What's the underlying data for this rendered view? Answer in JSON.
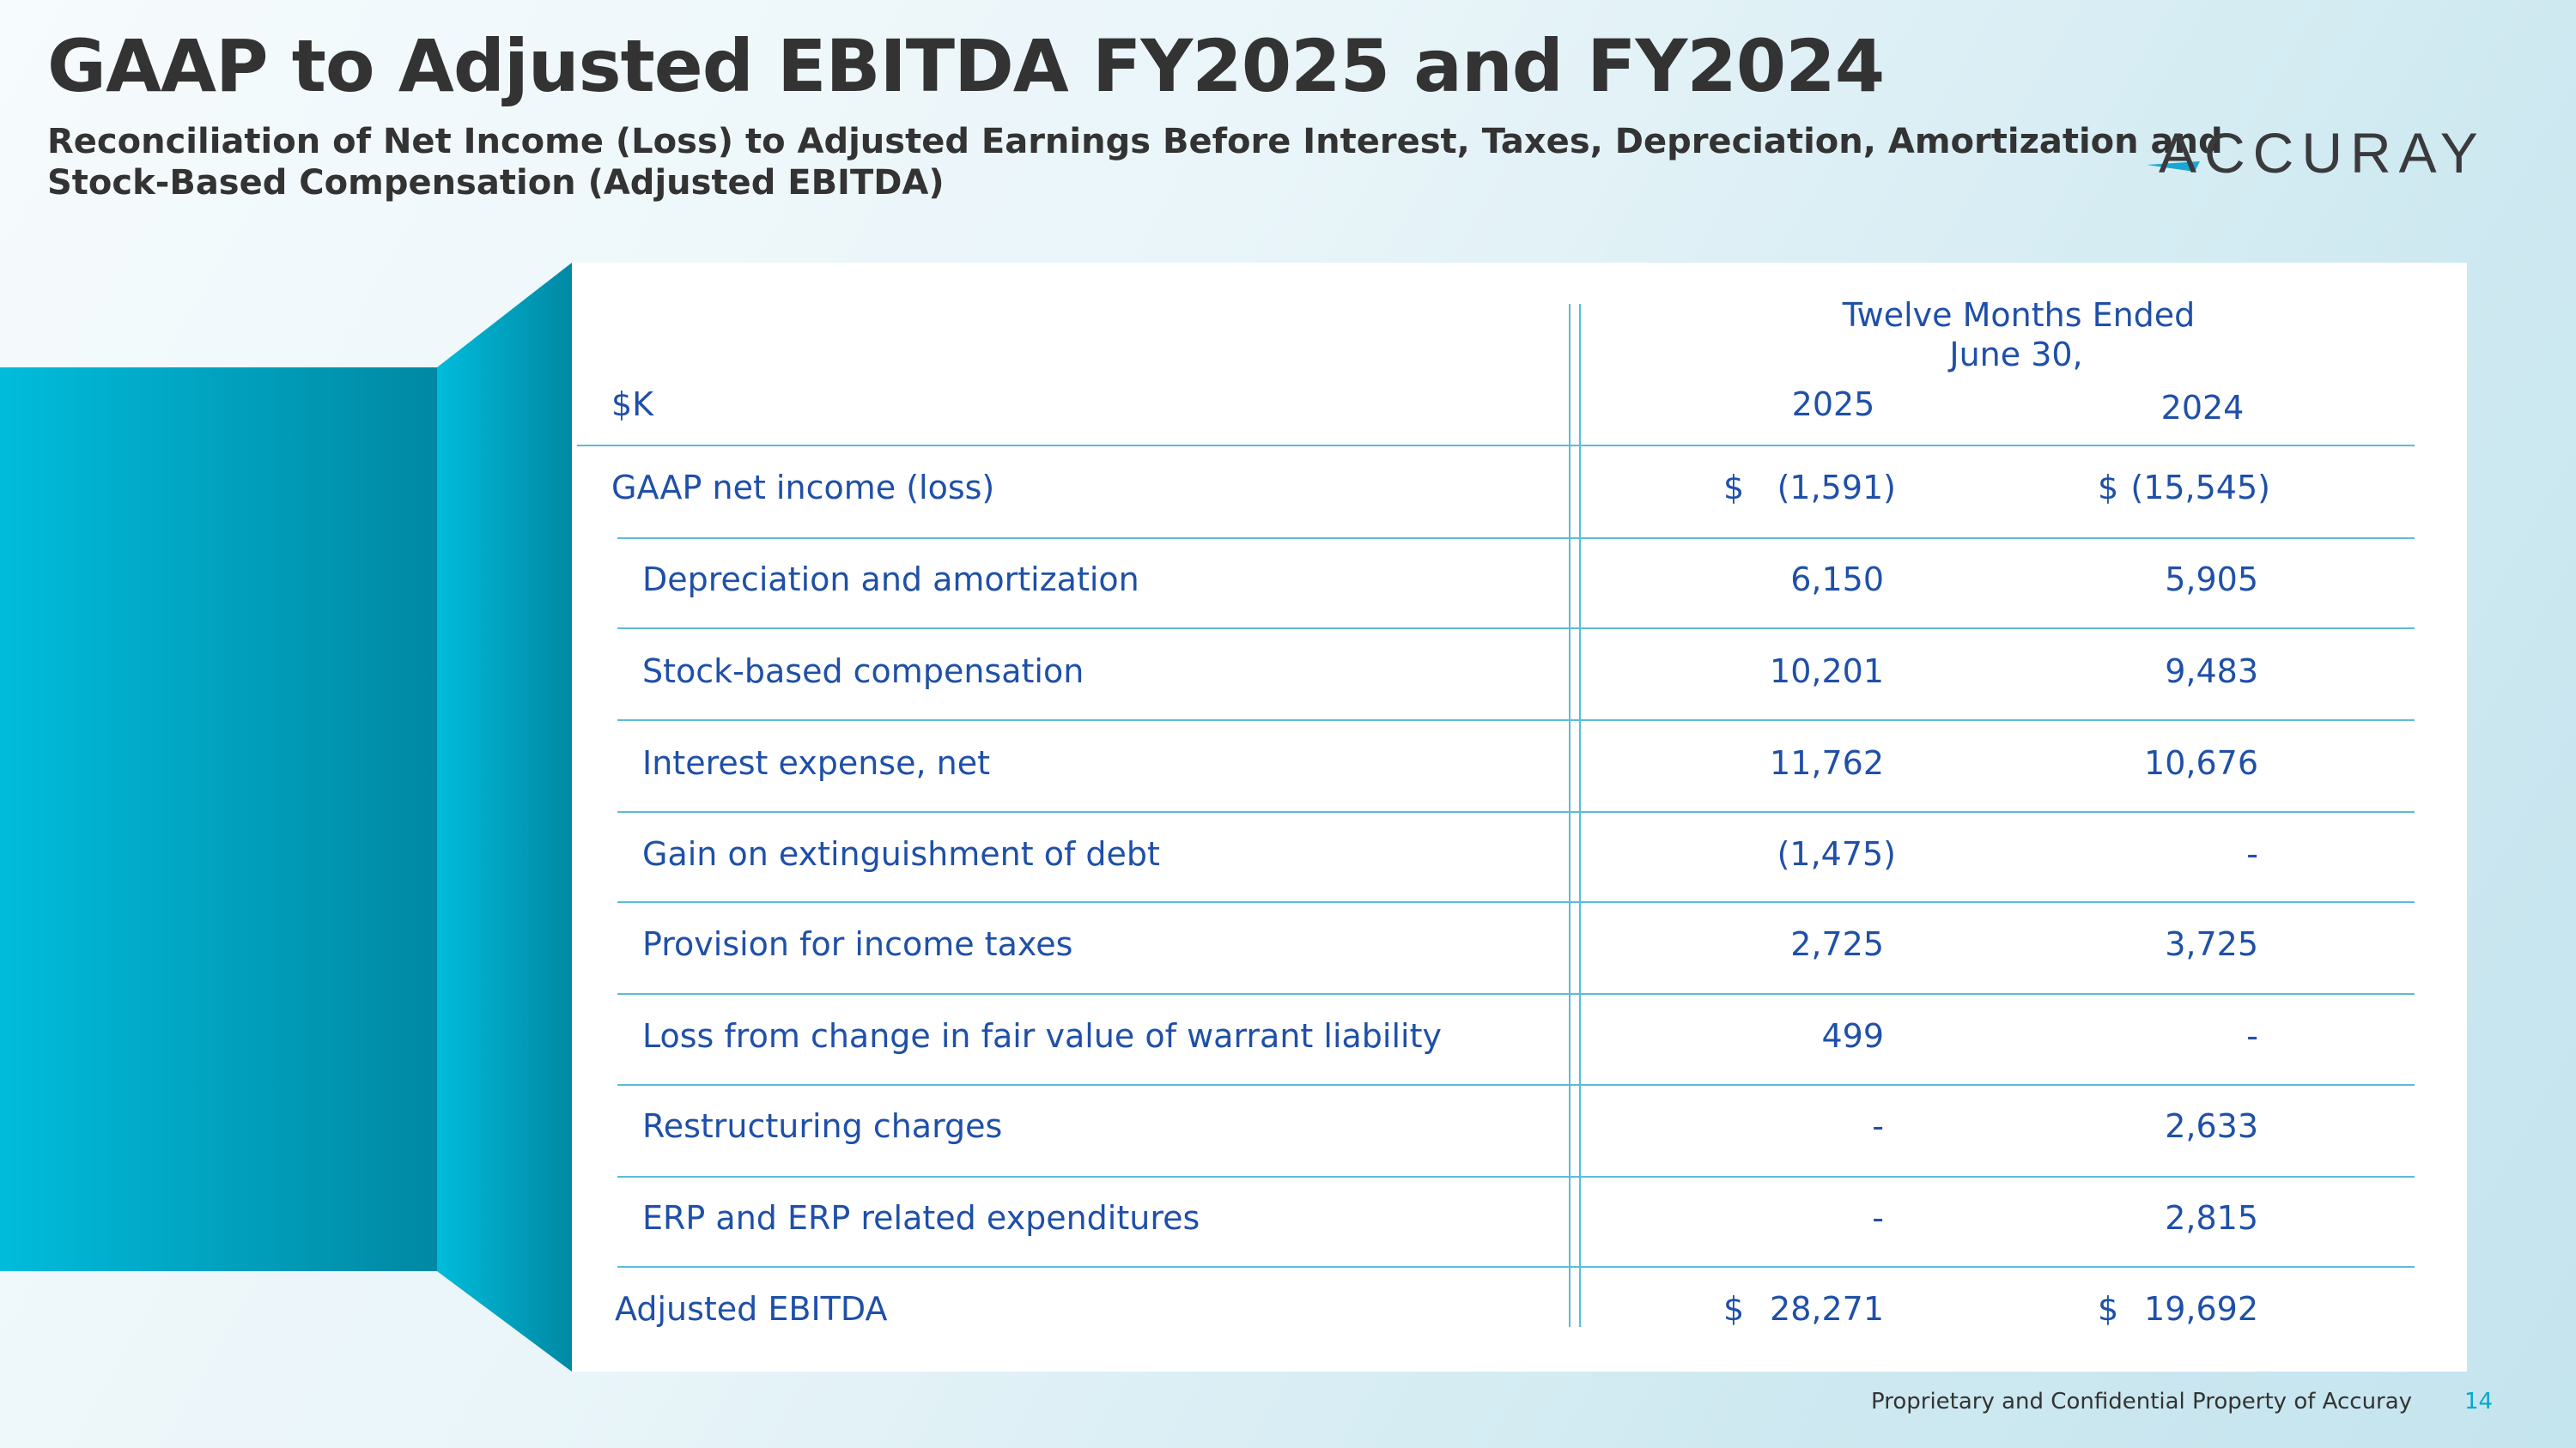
{
  "header": {
    "title": "GAAP to Adjusted EBITDA FY2025 and FY2024",
    "subtitle_line1": "Reconciliation of Net Income (Loss) to Adjusted Earnings Before Interest, Taxes, Depreciation, Amortization and",
    "subtitle_line2": "Stock-Based Compensation (Adjusted EBITDA)",
    "logo_text": "ACCURAY"
  },
  "table": {
    "unit_label": "$K",
    "period_header_line1": "Twelve Months Ended",
    "period_header_line2": "June 30,",
    "columns": [
      "2025",
      "2024"
    ],
    "rows": [
      {
        "label": "GAAP net income (loss)",
        "c2025_sign": "$",
        "c2025": "(1,591)",
        "c2024_sign": "$",
        "c2024": "(15,545)"
      },
      {
        "label": "Depreciation and amortization",
        "c2025": "6,150",
        "c2024": "5,905"
      },
      {
        "label": "Stock-based compensation",
        "c2025": "10,201",
        "c2024": "9,483"
      },
      {
        "label": "Interest expense, net",
        "c2025": "11,762",
        "c2024": "10,676"
      },
      {
        "label": "Gain on extinguishment of debt",
        "c2025": "(1,475)",
        "c2024": "-"
      },
      {
        "label": "Provision for income taxes",
        "c2025": "2,725",
        "c2024": "3,725"
      },
      {
        "label": "Loss from change in fair value of warrant liability",
        "c2025": "499",
        "c2024": "-"
      },
      {
        "label": "Restructuring charges",
        "c2025": "-",
        "c2024": "2,633"
      },
      {
        "label": "ERP and ERP related expenditures",
        "c2025": "-",
        "c2024": "2,815"
      },
      {
        "label": "Adjusted EBITDA",
        "c2025_sign": "$",
        "c2025": "28,271",
        "c2024_sign": "$",
        "c2024": "19,692"
      }
    ]
  },
  "footer": {
    "confidential": "Proprietary and Confidential Property of Accuray",
    "page_number": "14"
  },
  "colors": {
    "title": "#333333",
    "table_text": "#1f50a8",
    "rule": "#5bbcd8",
    "accent": "#00bcdb",
    "accent_dark": "#0088a3"
  }
}
